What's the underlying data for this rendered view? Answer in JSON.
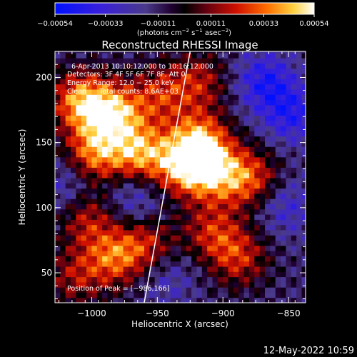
{
  "chart_data": {
    "type": "heatmap",
    "title": "Reconstructed RHESSI Image",
    "xlabel": "Heliocentric X (arcsec)",
    "ylabel": "Heliocentric Y (arcsec)",
    "xlim": [
      -1028,
      -837
    ],
    "ylim": [
      27,
      220
    ],
    "x_ticks": [
      -1000,
      -950,
      -900,
      -850
    ],
    "x_tick_labels": [
      "−1000",
      "−950",
      "−900",
      "−850"
    ],
    "y_ticks": [
      50,
      100,
      150,
      200
    ],
    "y_tick_labels": [
      "50",
      "100",
      "150",
      "200"
    ],
    "colorbar": {
      "range": [
        -0.00054,
        0.00054
      ],
      "ticks": [
        -0.00054,
        -0.00033,
        -0.00011,
        0.00011,
        0.00033,
        0.00054
      ],
      "tick_labels": [
        "−0.00054",
        "−0.00033",
        "−0.00011",
        "0.00011",
        "0.00033",
        "0.00054"
      ],
      "unit_text": "(photons cm",
      "unit_sup1": "−2",
      "unit_mid1": " s",
      "unit_sup2": "−1",
      "unit_mid2": " asec",
      "unit_sup3": "−2",
      "unit_end": ")"
    },
    "limb_line": [
      [
        -960,
        27
      ],
      [
        -925,
        220
      ]
    ],
    "annotations": {
      "time": "6-Apr-2013 10:10:12.000 to 10:16:12.000",
      "detectors": "Detectors: 3F 4F 5F 6F 7F 8F, Att 0",
      "energy": "Energy Range: 12.0 − 25.0 keV",
      "clean": "Clean      Total counts: 8.6AE+03",
      "peak": "Position of Peak = [−986,166]"
    },
    "hot_spots": [
      {
        "x": -1010,
        "y": 180,
        "v": 0.0005
      },
      {
        "x": -985,
        "y": 170,
        "v": 0.00052
      },
      {
        "x": -1000,
        "y": 140,
        "v": 0.00045
      },
      {
        "x": -965,
        "y": 140,
        "v": 0.00048
      },
      {
        "x": -930,
        "y": 130,
        "v": 0.00054
      },
      {
        "x": -920,
        "y": 150,
        "v": 0.00046
      },
      {
        "x": -905,
        "y": 125,
        "v": 0.0004
      },
      {
        "x": -880,
        "y": 120,
        "v": 0.00035
      },
      {
        "x": -950,
        "y": 185,
        "v": 0.0003
      },
      {
        "x": -920,
        "y": 195,
        "v": 0.00028
      },
      {
        "x": -1005,
        "y": 90,
        "v": 0.0003
      },
      {
        "x": -985,
        "y": 60,
        "v": 0.00038
      },
      {
        "x": -960,
        "y": 70,
        "v": 0.0003
      },
      {
        "x": -910,
        "y": 80,
        "v": 0.0003
      },
      {
        "x": -890,
        "y": 60,
        "v": 0.00032
      },
      {
        "x": -1015,
        "y": 45,
        "v": 0.00025
      }
    ],
    "cold_spots": [
      {
        "x": -870,
        "y": 195,
        "v": -0.0003
      },
      {
        "x": -850,
        "y": 170,
        "v": -0.00028
      },
      {
        "x": -970,
        "y": 105,
        "v": -0.0002
      },
      {
        "x": -1020,
        "y": 115,
        "v": -0.00018
      },
      {
        "x": -945,
        "y": 45,
        "v": -0.00015
      },
      {
        "x": -855,
        "y": 100,
        "v": -0.0002
      }
    ]
  },
  "footer": {
    "timestamp": "12-May-2022 10:59"
  }
}
